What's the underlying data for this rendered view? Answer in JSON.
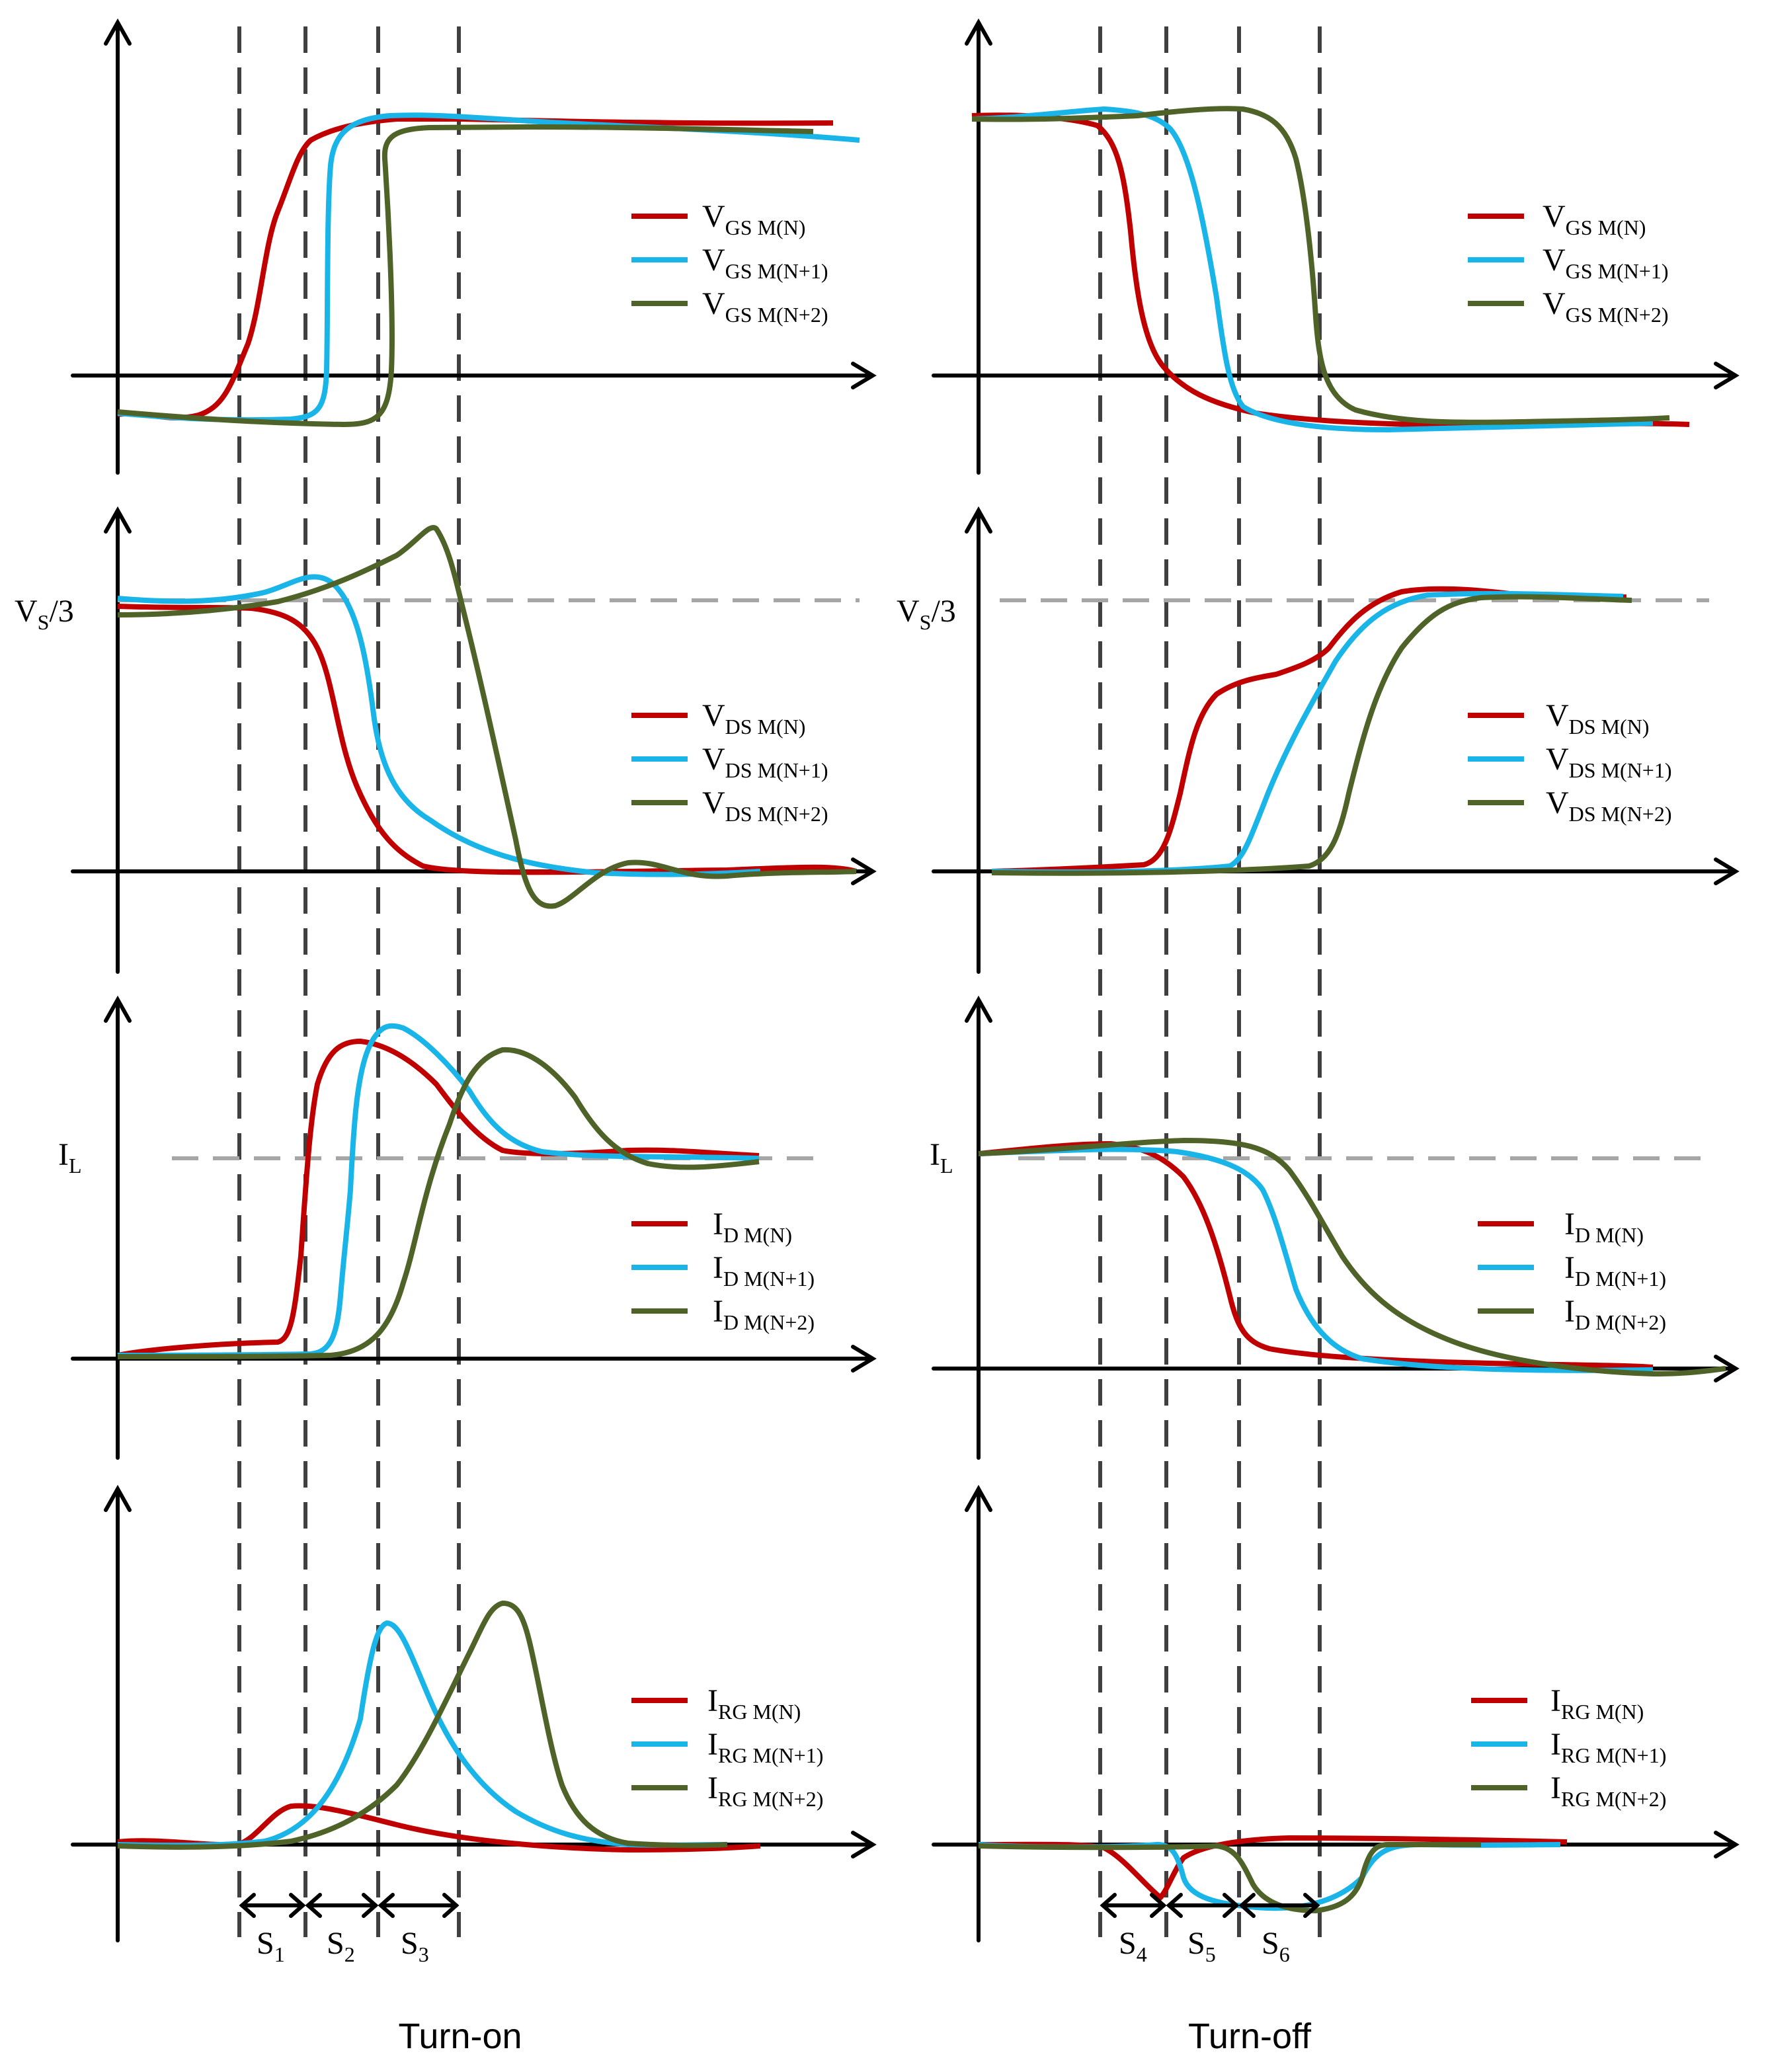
{
  "captions": {
    "left": "Turn-on",
    "right": "Turn-off"
  },
  "colors": {
    "series_n": "#c00000",
    "series_n1": "#19b4e8",
    "series_n2": "#4f6228",
    "axes": "#000000",
    "dashed": "#404040",
    "reference": "#a6a6a6"
  },
  "reference_labels": {
    "vs3_main": "V",
    "vs3_sub": "S",
    "vs3_tail": "/3",
    "il_main": "I",
    "il_sub": "L"
  },
  "panels": {
    "vgs": {
      "symbol": "V",
      "legend": [
        {
          "sub": "GS M(N)"
        },
        {
          "sub": "GS M(N+1)"
        },
        {
          "sub": "GS M(N+2)"
        }
      ]
    },
    "vds": {
      "symbol": "V",
      "legend": [
        {
          "sub": "DS M(N)"
        },
        {
          "sub": "DS M(N+1)"
        },
        {
          "sub": "DS M(N+2)"
        }
      ]
    },
    "id": {
      "symbol": "I",
      "legend": [
        {
          "sub": "D M(N)"
        },
        {
          "sub": "D M(N+1)"
        },
        {
          "sub": "D M(N+2)"
        }
      ]
    },
    "irg": {
      "symbol": "I",
      "legend": [
        {
          "sub": "RG M(N)"
        },
        {
          "sub": "RG M(N+1)"
        },
        {
          "sub": "RG M(N+2)"
        }
      ]
    }
  },
  "stages": {
    "turn_on": [
      {
        "main": "S",
        "sub": "1"
      },
      {
        "main": "S",
        "sub": "2"
      },
      {
        "main": "S",
        "sub": "3"
      }
    ],
    "turn_off": [
      {
        "main": "S",
        "sub": "4"
      },
      {
        "main": "S",
        "sub": "5"
      },
      {
        "main": "S",
        "sub": "6"
      }
    ]
  }
}
